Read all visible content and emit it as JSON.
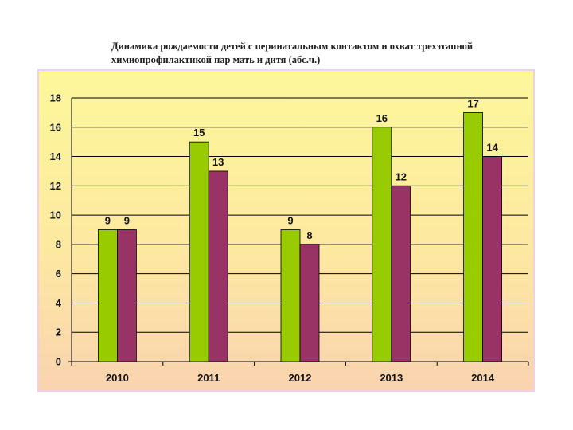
{
  "title": "Динамика рождаемости детей с перинатальным контактом и охват трехэтапной химиопрофилактикой пар мать и дитя (абс.ч.)",
  "chart_data": {
    "type": "bar",
    "title": "Динамика рождаемости детей с перинатальным контактом и охват трехэтапной химиопрофилактикой пар мать и дитя (абс.ч.)",
    "categories": [
      "2010",
      "2011",
      "2012",
      "2013",
      "2014"
    ],
    "series": [
      {
        "values": [
          9,
          15,
          9,
          16,
          17
        ],
        "color": "#99cc00"
      },
      {
        "values": [
          9,
          13,
          8,
          12,
          14
        ],
        "color": "#993366"
      }
    ],
    "ylim": [
      0,
      18
    ],
    "yticks": [
      "0",
      "2",
      "4",
      "6",
      "8",
      "10",
      "12",
      "14",
      "16",
      "18"
    ],
    "grid": true,
    "legend": "none",
    "colors": {
      "gridline": "#000000",
      "background_top": "#fdf79a",
      "background_bottom": "#fad3b0",
      "border": "#f0cfe8"
    }
  }
}
